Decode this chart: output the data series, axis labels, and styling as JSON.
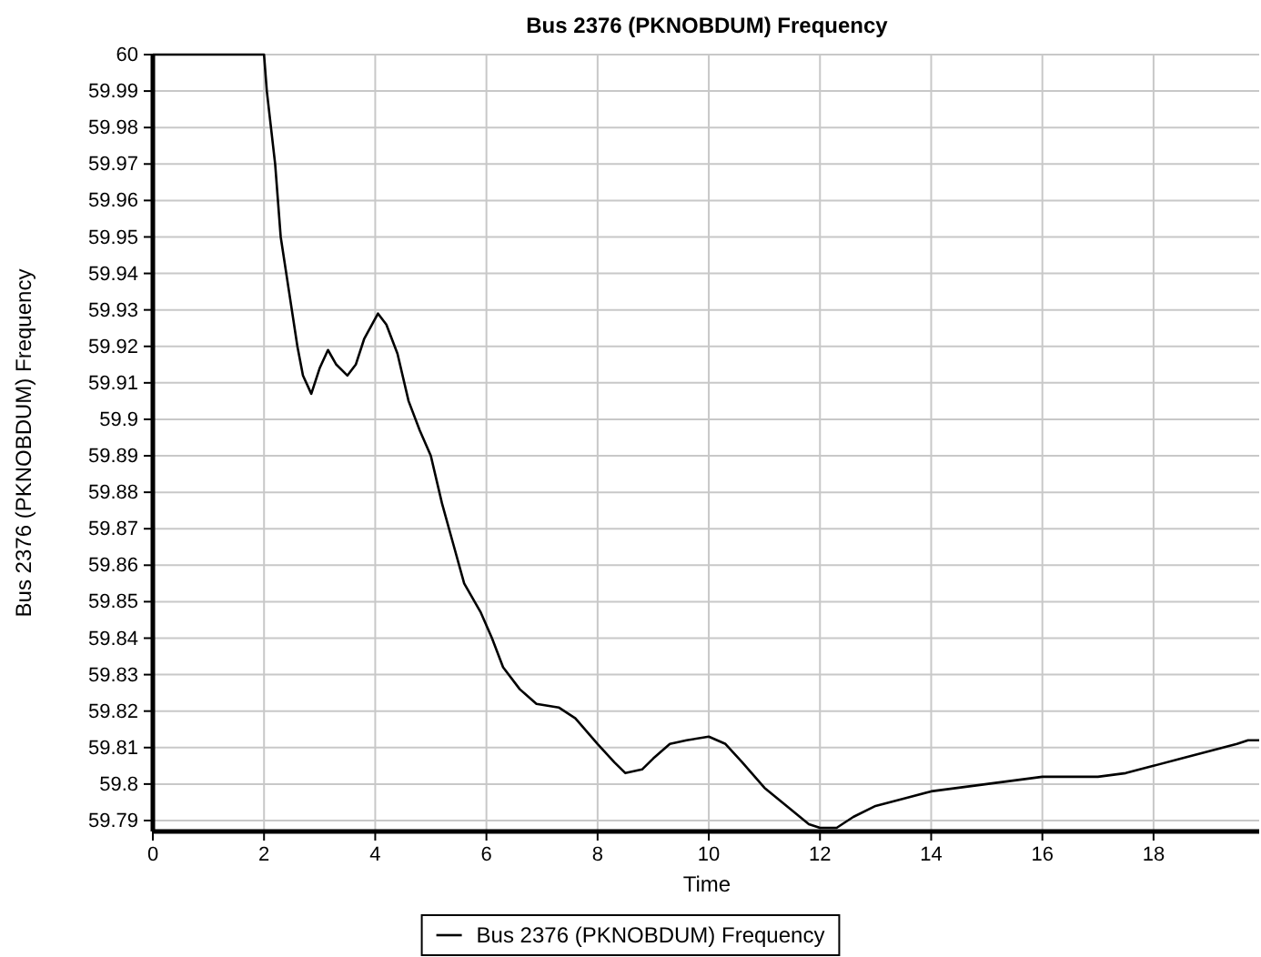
{
  "chart_data": {
    "type": "line",
    "title": "Bus 2376 (PKNOBDUM) Frequency",
    "xlabel": "Time",
    "ylabel": "Bus 2376 (PKNOBDUM) Frequency",
    "x": [
      0,
      2,
      2.05,
      2.2,
      2.3,
      2.45,
      2.6,
      2.7,
      2.85,
      3.0,
      3.15,
      3.3,
      3.5,
      3.65,
      3.8,
      4.05,
      4.2,
      4.4,
      4.6,
      4.8,
      5.0,
      5.2,
      5.4,
      5.6,
      5.9,
      6.1,
      6.3,
      6.6,
      6.9,
      7.3,
      7.6,
      8.0,
      8.3,
      8.5,
      8.8,
      9.0,
      9.3,
      9.6,
      10.0,
      10.3,
      10.6,
      11.0,
      11.4,
      11.8,
      12.0,
      12.3,
      12.6,
      13.0,
      13.5,
      14.0,
      14.5,
      15.0,
      15.5,
      16,
      17,
      17.5,
      18,
      18.5,
      19,
      19.5,
      19.7,
      19.9
    ],
    "series": [
      {
        "name": "Bus 2376 (PKNOBDUM) Frequency",
        "color": "#000000",
        "values": [
          60,
          60,
          59.99,
          59.97,
          59.95,
          59.935,
          59.92,
          59.912,
          59.907,
          59.914,
          59.919,
          59.915,
          59.912,
          59.915,
          59.922,
          59.929,
          59.926,
          59.918,
          59.905,
          59.897,
          59.89,
          59.877,
          59.866,
          59.855,
          59.847,
          59.84,
          59.832,
          59.826,
          59.822,
          59.821,
          59.818,
          59.811,
          59.806,
          59.803,
          59.804,
          59.807,
          59.811,
          59.812,
          59.813,
          59.811,
          59.806,
          59.799,
          59.794,
          59.789,
          59.788,
          59.788,
          59.791,
          59.794,
          59.796,
          59.798,
          59.799,
          59.8,
          59.801,
          59.802,
          59.802,
          59.803,
          59.805,
          59.807,
          59.809,
          59.811,
          59.812,
          59.812
        ]
      }
    ],
    "xlim": [
      0,
      19.9
    ],
    "xticks": [
      0,
      2,
      4,
      6,
      8,
      10,
      12,
      14,
      16,
      18
    ],
    "ylim": [
      59.787,
      60
    ],
    "yticks": [
      59.79,
      59.8,
      59.81,
      59.82,
      59.83,
      59.84,
      59.85,
      59.86,
      59.87,
      59.88,
      59.89,
      59.9,
      59.91,
      59.92,
      59.93,
      59.94,
      59.95,
      59.96,
      59.97,
      59.98,
      59.99,
      60
    ],
    "grid": true,
    "legend": "bottom",
    "line_style": "solid",
    "marker": "none"
  }
}
